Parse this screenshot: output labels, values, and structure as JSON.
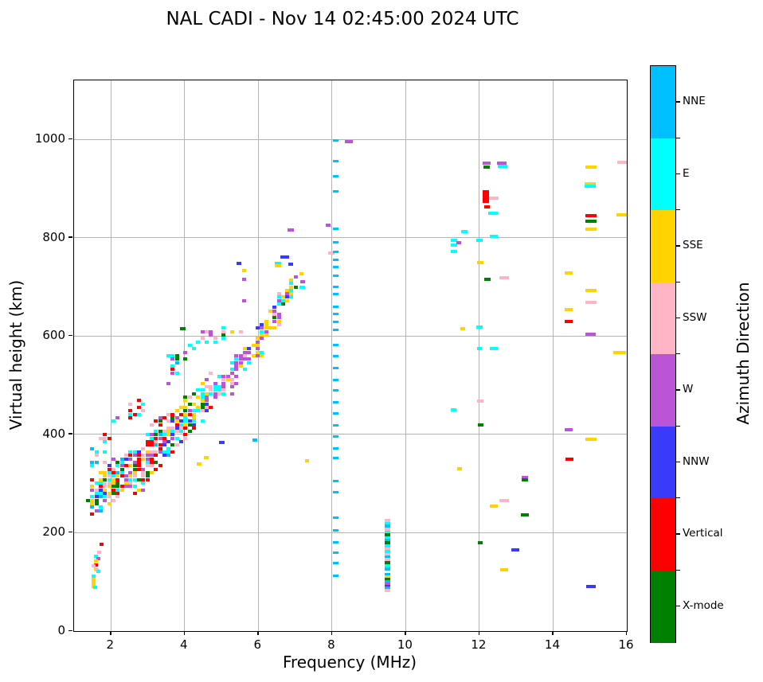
{
  "chart_data": {
    "type": "scatter",
    "title": "NAL CADI - Nov 14 02:45:00 2024 UTC",
    "xlabel": "Frequency (MHz)",
    "ylabel": "Virtual height (km)",
    "xlim": [
      1,
      16
    ],
    "ylim": [
      0,
      1120
    ],
    "xticks": [
      2,
      4,
      6,
      8,
      10,
      12,
      14,
      16
    ],
    "yticks": [
      0,
      200,
      400,
      600,
      800,
      1000
    ],
    "grid": true,
    "grid_color": "#b4b4b4",
    "legend_position": "right-colorbar",
    "colorbar": {
      "label": "Azimuth Direction",
      "categories_top_to_bottom": [
        {
          "key": "NNE",
          "label": "NNE",
          "color": "#00BFFF"
        },
        {
          "key": "E",
          "label": "E",
          "color": "#00FFFF"
        },
        {
          "key": "SSE",
          "label": "SSE",
          "color": "#FFD300"
        },
        {
          "key": "SSW",
          "label": "SSW",
          "color": "#FFB5C5"
        },
        {
          "key": "W",
          "label": "W",
          "color": "#BB55D8"
        },
        {
          "key": "NNW",
          "label": "NNW",
          "color": "#3A3AFA"
        },
        {
          "key": "V",
          "label": "Vertical",
          "color": "#FF0000"
        },
        {
          "key": "X",
          "label": "X-mode",
          "color": "#008000"
        }
      ]
    },
    "seed": 7,
    "points": [
      [
        1.75,
        177,
        "V"
      ],
      [
        1.68,
        160,
        "SSW"
      ],
      [
        1.59,
        152,
        "E"
      ],
      [
        1.67,
        147,
        "W"
      ],
      [
        1.6,
        143,
        "SSE"
      ],
      [
        1.59,
        135,
        "V"
      ],
      [
        1.54,
        132,
        "SSW"
      ],
      [
        1.59,
        127,
        "SSE"
      ],
      [
        1.62,
        124,
        "SSW"
      ],
      [
        1.67,
        121,
        "E"
      ],
      [
        1.54,
        111,
        "E"
      ],
      [
        1.54,
        98,
        "SSE",
        5,
        13
      ],
      [
        1.57,
        89,
        "E"
      ],
      [
        8.46,
        995,
        "W",
        10
      ],
      [
        7.89,
        826,
        "W",
        6
      ],
      [
        6.87,
        815,
        "W",
        8
      ],
      [
        7.98,
        768,
        "SSW",
        8
      ],
      [
        6.71,
        761,
        "NNW",
        11
      ],
      [
        6.87,
        746,
        "NNW",
        6
      ],
      [
        6.53,
        748,
        "E",
        8
      ],
      [
        6.53,
        743,
        "SSE",
        8
      ],
      [
        5.48,
        747,
        "NNW",
        6
      ],
      [
        5.62,
        733,
        "SSE",
        5
      ],
      [
        7.18,
        727,
        "SSE",
        5
      ],
      [
        7.21,
        711,
        "W",
        6
      ],
      [
        7.19,
        699,
        "E",
        7
      ],
      [
        5.62,
        716,
        "W",
        5
      ],
      [
        5.62,
        672,
        "W",
        5
      ],
      [
        7.32,
        347,
        "SSE",
        5
      ],
      [
        4.58,
        353,
        "SSE",
        6
      ],
      [
        4.39,
        340,
        "SSE",
        6
      ],
      [
        5.9,
        388,
        "NNE",
        6
      ],
      [
        5.0,
        383,
        "NNW",
        7
      ],
      [
        3.95,
        615,
        "X",
        7
      ],
      [
        12.2,
        952,
        "W",
        10
      ],
      [
        12.2,
        944,
        "X",
        8
      ],
      [
        12.6,
        952,
        "W",
        12
      ],
      [
        12.62,
        946,
        "E",
        12
      ],
      [
        15.86,
        954,
        "SSW",
        12
      ],
      [
        15.02,
        943,
        "SSE",
        14
      ],
      [
        15.0,
        910,
        "SSE",
        14
      ],
      [
        15.0,
        905,
        "E",
        14
      ],
      [
        12.17,
        884,
        "V",
        8,
        16
      ],
      [
        12.39,
        880,
        "SSW",
        12
      ],
      [
        12.2,
        862,
        "V",
        7
      ],
      [
        12.37,
        849,
        "E",
        12
      ],
      [
        15.02,
        845,
        "V",
        14
      ],
      [
        15.02,
        834,
        "X",
        14
      ],
      [
        15.02,
        817,
        "SSE",
        14
      ],
      [
        15.86,
        847,
        "SSE",
        14
      ],
      [
        11.58,
        813,
        "E",
        8
      ],
      [
        11.3,
        795,
        "E",
        8
      ],
      [
        11.3,
        785,
        "E",
        8
      ],
      [
        11.3,
        772,
        "E",
        8
      ],
      [
        11.45,
        790,
        "W",
        6
      ],
      [
        12.01,
        795,
        "E",
        8
      ],
      [
        12.39,
        802,
        "E",
        10
      ],
      [
        12.03,
        750,
        "SSE",
        8
      ],
      [
        12.21,
        715,
        "X",
        8
      ],
      [
        12.68,
        718,
        "SSW",
        12
      ],
      [
        14.43,
        728,
        "SSE",
        10
      ],
      [
        15.02,
        693,
        "SSE",
        14
      ],
      [
        15.02,
        668,
        "SSW",
        14
      ],
      [
        14.43,
        654,
        "SSE",
        10
      ],
      [
        14.43,
        630,
        "V",
        10
      ],
      [
        15.02,
        603,
        "W",
        13
      ],
      [
        11.54,
        615,
        "SSE",
        6
      ],
      [
        12.0,
        619,
        "E",
        8
      ],
      [
        12.0,
        575,
        "E",
        6
      ],
      [
        12.39,
        575,
        "E",
        10
      ],
      [
        15.8,
        567,
        "SSE",
        16
      ],
      [
        12.02,
        468,
        "SSW",
        8
      ],
      [
        11.3,
        450,
        "E",
        7
      ],
      [
        12.04,
        420,
        "X",
        7
      ],
      [
        14.43,
        410,
        "W",
        10
      ],
      [
        15.02,
        390,
        "SSE",
        14
      ],
      [
        14.44,
        350,
        "V",
        10
      ],
      [
        11.47,
        330,
        "SSE",
        6
      ],
      [
        13.23,
        312,
        "W",
        8
      ],
      [
        13.23,
        307,
        "X",
        8
      ],
      [
        12.68,
        266,
        "SSW",
        12
      ],
      [
        12.4,
        254,
        "SSE",
        10
      ],
      [
        13.23,
        236,
        "X",
        10
      ],
      [
        12.03,
        180,
        "X",
        6
      ],
      [
        12.97,
        165,
        "NNW",
        10
      ],
      [
        12.68,
        125,
        "SSE",
        10
      ],
      [
        15.02,
        90,
        "NNW",
        12
      ]
    ],
    "columns": [
      {
        "f": 8.1,
        "w": 7,
        "mh": 3,
        "key": "NNE",
        "heights": [
          998,
          955,
          925,
          895,
          818,
          790,
          772,
          755,
          740,
          722,
          700,
          686,
          660,
          645,
          628,
          612,
          582,
          560,
          535,
          510,
          490,
          465,
          443,
          418,
          396,
          372,
          352,
          305,
          282,
          230,
          205,
          180,
          160,
          138,
          113
        ]
      },
      {
        "f": 9.5,
        "w": 7,
        "mh": 4,
        "marks": [
          [
            225,
            "SSW"
          ],
          [
            219,
            "E"
          ],
          [
            213,
            "NNE"
          ],
          [
            207,
            "SSW"
          ],
          [
            201,
            "E"
          ],
          [
            196,
            "X"
          ],
          [
            190,
            "E"
          ],
          [
            184,
            "NNE"
          ],
          [
            179,
            "X"
          ],
          [
            173,
            "E"
          ],
          [
            167,
            "SSW"
          ],
          [
            162,
            "E"
          ],
          [
            156,
            "SSW"
          ],
          [
            150,
            "NNE"
          ],
          [
            145,
            "SSW"
          ],
          [
            139,
            "X"
          ],
          [
            133,
            "E"
          ],
          [
            127,
            "NNE"
          ],
          [
            115,
            "NNE"
          ],
          [
            110,
            "SSE"
          ],
          [
            105,
            "X"
          ],
          [
            100,
            "NNE"
          ],
          [
            95,
            "W"
          ],
          [
            91,
            "NNW"
          ],
          [
            87,
            "NNE"
          ],
          [
            83,
            "SSW"
          ]
        ]
      }
    ],
    "clusters": [
      {
        "f": [
          1.42,
          2.05
        ],
        "h": [
          265,
          300
        ],
        "spread": 42,
        "n": 100,
        "colors": {
          "V": 3,
          "SSW": 4,
          "SSE": 3,
          "E": 3,
          "NNE": 1,
          "X": 1,
          "NNW": 1,
          "W": 1
        }
      },
      {
        "f": [
          1.5,
          2.0
        ],
        "h": [
          355,
          385
        ],
        "spread": 40,
        "n": 16,
        "colors": {
          "V": 2,
          "SSW": 2,
          "E": 2,
          "NNE": 1
        }
      },
      {
        "f": [
          2.0,
          3.1
        ],
        "h": [
          300,
          345
        ],
        "spread": 52,
        "n": 135,
        "colors": {
          "V": 4,
          "SSW": 4,
          "E": 3,
          "SSE": 2,
          "X": 2,
          "NNW": 2,
          "W": 2,
          "NNE": 1
        }
      },
      {
        "f": [
          3.0,
          4.1
        ],
        "h": [
          360,
          440
        ],
        "spread": 58,
        "n": 115,
        "colors": {
          "V": 4,
          "SSW": 3,
          "E": 3,
          "SSE": 2,
          "X": 2,
          "NNW": 2,
          "W": 2,
          "NNE": 1
        }
      },
      {
        "f": [
          4.0,
          4.7
        ],
        "h": [
          445,
          470
        ],
        "spread": 45,
        "n": 50,
        "colors": {
          "E": 3,
          "SSE": 3,
          "V": 2,
          "X": 2,
          "W": 2,
          "SSW": 1,
          "NNW": 1
        }
      },
      {
        "f": [
          4.5,
          5.4
        ],
        "h": [
          480,
          520
        ],
        "spread": 35,
        "n": 55,
        "colors": {
          "W": 4,
          "E": 3,
          "SSW": 2,
          "SSE": 1,
          "X": 1,
          "NNW": 1
        }
      },
      {
        "f": [
          5.3,
          6.1
        ],
        "h": [
          540,
          575
        ],
        "spread": 26,
        "n": 50,
        "colors": {
          "W": 5,
          "E": 2,
          "SSE": 2,
          "SSW": 1,
          "NNW": 1,
          "X": 1
        }
      },
      {
        "f": [
          6.0,
          6.6
        ],
        "h": [
          595,
          650
        ],
        "spread": 24,
        "n": 45,
        "colors": {
          "W": 4,
          "SSE": 3,
          "E": 2,
          "NNW": 1,
          "SSW": 1
        }
      },
      {
        "f": [
          6.4,
          7.05
        ],
        "h": [
          655,
          715
        ],
        "spread": 26,
        "n": 42,
        "colors": {
          "W": 4,
          "SSE": 3,
          "E": 2,
          "NNW": 2,
          "X": 1,
          "SSW": 1
        }
      },
      {
        "f": [
          4.2,
          5.6
        ],
        "h": [
          585,
          620
        ],
        "spread": 28,
        "n": 18,
        "colors": {
          "SSW": 2,
          "W": 2,
          "E": 2,
          "X": 1,
          "SSE": 1
        }
      },
      {
        "f": [
          3.4,
          4.3
        ],
        "h": [
          520,
          585
        ],
        "spread": 32,
        "n": 15,
        "colors": {
          "X": 2,
          "E": 2,
          "W": 1,
          "V": 1,
          "NNE": 1
        }
      },
      {
        "f": [
          2.1,
          2.9
        ],
        "h": [
          425,
          465
        ],
        "spread": 28,
        "n": 13,
        "colors": {
          "V": 2,
          "SSW": 2,
          "E": 1,
          "W": 1
        }
      }
    ]
  }
}
